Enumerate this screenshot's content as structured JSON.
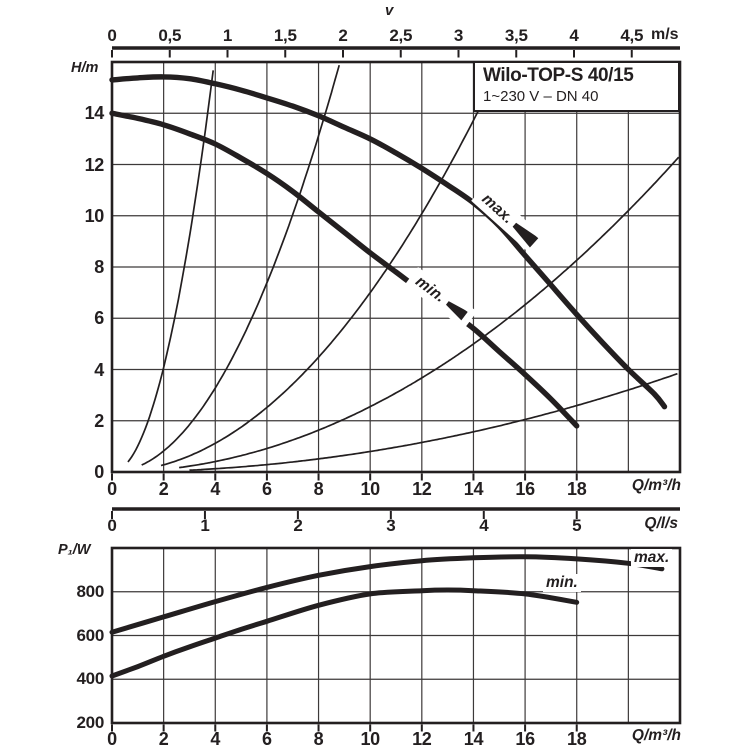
{
  "title_box": {
    "title": "Wilo-TOP-S 40/15",
    "subtitle": "1~230 V – DN 40"
  },
  "colors": {
    "ink": "#231f20",
    "grid": "#3d3a3a",
    "background": "#ffffff"
  },
  "chart_data": [
    {
      "type": "line",
      "id": "head_flow_chart",
      "xlabel": "Q/m³/h",
      "ylabel": "H/m",
      "xlim": [
        0,
        22
      ],
      "ylim": [
        0,
        16
      ],
      "grid": true,
      "x_tick_values": [
        0,
        2,
        4,
        6,
        8,
        10,
        12,
        14,
        16,
        18
      ],
      "x_tick_labels": [
        "0",
        "2",
        "4",
        "6",
        "8",
        "10",
        "12",
        "14",
        "16",
        "18"
      ],
      "y_tick_values": [
        0,
        2,
        4,
        6,
        8,
        10,
        12,
        14
      ],
      "y_tick_labels": [
        "0",
        "2",
        "4",
        "6",
        "8",
        "10",
        "12",
        "14"
      ],
      "velocity_axis": {
        "name": "v",
        "unit": "m/s",
        "tick_values": [
          0,
          0.5,
          1,
          1.5,
          2,
          2.5,
          3,
          3.5,
          4,
          4.5
        ],
        "tick_labels": [
          "0",
          "0,5",
          "1",
          "1,5",
          "2",
          "2,5",
          "3",
          "3,5",
          "4",
          "4,5"
        ]
      },
      "liters_axis": {
        "unit": "Q/l/s",
        "m3h_per_unit": 3.6,
        "tick_values": [
          0,
          1,
          2,
          3,
          4,
          5
        ],
        "tick_labels": [
          "0",
          "1",
          "2",
          "3",
          "4",
          "5"
        ]
      },
      "series": [
        {
          "name": "max",
          "label": "max.",
          "points": [
            [
              0,
              15.3
            ],
            [
              1,
              15.38
            ],
            [
              2,
              15.42
            ],
            [
              3,
              15.35
            ],
            [
              4,
              15.15
            ],
            [
              5,
              14.9
            ],
            [
              6,
              14.6
            ],
            [
              7,
              14.28
            ],
            [
              8,
              13.9
            ],
            [
              9,
              13.45
            ],
            [
              10,
              13.0
            ],
            [
              11,
              12.45
            ],
            [
              12,
              11.85
            ],
            [
              13,
              11.2
            ],
            [
              14,
              10.5
            ],
            [
              15,
              9.6
            ],
            [
              16,
              8.45
            ],
            [
              17,
              7.3
            ],
            [
              18,
              6.15
            ],
            [
              19,
              5.05
            ],
            [
              20,
              4.0
            ],
            [
              21,
              3.05
            ],
            [
              21.4,
              2.55
            ]
          ]
        },
        {
          "name": "min",
          "label": "min.",
          "points": [
            [
              0,
              14.0
            ],
            [
              1,
              13.8
            ],
            [
              2,
              13.55
            ],
            [
              3,
              13.2
            ],
            [
              4,
              12.8
            ],
            [
              5,
              12.25
            ],
            [
              6,
              11.65
            ],
            [
              7,
              10.95
            ],
            [
              8,
              10.15
            ],
            [
              9,
              9.35
            ],
            [
              10,
              8.55
            ],
            [
              11,
              7.8
            ],
            [
              12,
              7.05
            ],
            [
              13,
              6.35
            ],
            [
              14,
              5.6
            ],
            [
              15,
              4.7
            ],
            [
              16,
              3.8
            ],
            [
              17,
              2.85
            ],
            [
              18,
              1.8
            ]
          ]
        }
      ],
      "system_curves": {
        "description": "thin system parabolas H = k·Q²",
        "k_values": [
          1.02,
          0.205,
          0.07,
          0.0255,
          0.008
        ],
        "q_start": [
          0.62,
          1.15,
          1.9,
          2.6,
          3.0
        ]
      }
    },
    {
      "type": "line",
      "id": "power_flow_chart",
      "xlabel": "Q/m³/h",
      "ylabel": "P₁/W",
      "xlim": [
        0,
        22
      ],
      "ylim": [
        200,
        1000
      ],
      "grid": true,
      "x_tick_values": [
        0,
        2,
        4,
        6,
        8,
        10,
        12,
        14,
        16,
        18
      ],
      "x_tick_labels": [
        "0",
        "2",
        "4",
        "6",
        "8",
        "10",
        "12",
        "14",
        "16",
        "18"
      ],
      "y_tick_values": [
        200,
        400,
        600,
        800
      ],
      "y_tick_labels": [
        "200",
        "400",
        "600",
        "800"
      ],
      "series": [
        {
          "name": "max",
          "label": "max.",
          "points": [
            [
              0,
              615
            ],
            [
              2,
              685
            ],
            [
              4,
              755
            ],
            [
              6,
              820
            ],
            [
              8,
              875
            ],
            [
              10,
              915
            ],
            [
              12,
              942
            ],
            [
              14,
              955
            ],
            [
              16,
              960
            ],
            [
              18,
              950
            ],
            [
              20,
              930
            ],
            [
              21.3,
              905
            ]
          ]
        },
        {
          "name": "min",
          "label": "min.",
          "points": [
            [
              0,
              415
            ],
            [
              1,
              458
            ],
            [
              2,
              505
            ],
            [
              3,
              548
            ],
            [
              4,
              588
            ],
            [
              5,
              628
            ],
            [
              6,
              665
            ],
            [
              8,
              738
            ],
            [
              10,
              790
            ],
            [
              12,
              805
            ],
            [
              13,
              808
            ],
            [
              14,
              805
            ],
            [
              16,
              790
            ],
            [
              18,
              752
            ]
          ]
        }
      ]
    }
  ]
}
